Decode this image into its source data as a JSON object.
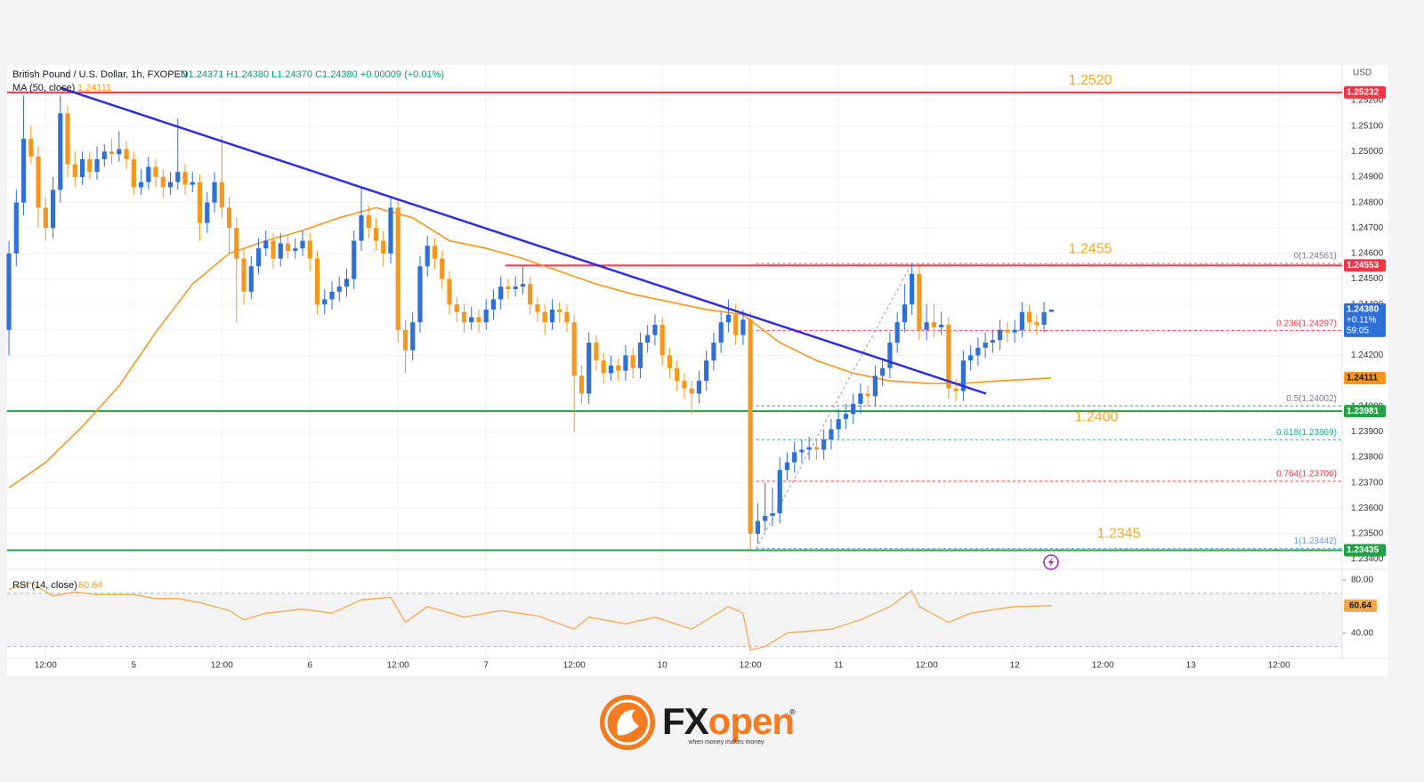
{
  "chart_data": {
    "type": "candlestick",
    "title": "British Pound / U.S. Dollar, 1h, FXOPEN",
    "quote": "O1.24371 H1.24380 L1.24370 C1.24380 +0.00009 (+0.01%)",
    "currency": "USD",
    "up_color": "#2e6fd8",
    "down_color": "#f5961d",
    "grid": true,
    "xlim": [
      -0.25,
      181.6
    ],
    "xticks": [
      {
        "value": 5,
        "label": "12:00"
      },
      {
        "value": 17,
        "label": "5"
      },
      {
        "value": 29,
        "label": "12:00"
      },
      {
        "value": 41,
        "label": "6"
      },
      {
        "value": 53,
        "label": "12:00"
      },
      {
        "value": 65,
        "label": "7"
      },
      {
        "value": 77,
        "label": "12:00"
      },
      {
        "value": 89,
        "label": "10"
      },
      {
        "value": 101,
        "label": "12:00"
      },
      {
        "value": 113,
        "label": "11"
      },
      {
        "value": 125,
        "label": "12:00"
      },
      {
        "value": 137,
        "label": "12"
      },
      {
        "value": 149,
        "label": "12:00"
      },
      {
        "value": 161,
        "label": "13"
      },
      {
        "value": 173,
        "label": "12:00"
      }
    ],
    "ylim": [
      1.2336,
      1.2534
    ],
    "yticks": [
      {
        "value": 1.252,
        "label": "1.25200"
      },
      {
        "value": 1.251,
        "label": "1.25100"
      },
      {
        "value": 1.25,
        "label": "1.25000"
      },
      {
        "value": 1.249,
        "label": "1.24900"
      },
      {
        "value": 1.248,
        "label": "1.24800"
      },
      {
        "value": 1.247,
        "label": "1.24700"
      },
      {
        "value": 1.246,
        "label": "1.24600"
      },
      {
        "value": 1.245,
        "label": "1.24500"
      },
      {
        "value": 1.244,
        "label": "1.24400"
      },
      {
        "value": 1.243,
        "label": "1.24300"
      },
      {
        "value": 1.242,
        "label": "1.24200"
      },
      {
        "value": 1.241,
        "label": "1.24100"
      },
      {
        "value": 1.24,
        "label": "1.24000"
      },
      {
        "value": 1.239,
        "label": "1.23900"
      },
      {
        "value": 1.238,
        "label": "1.23800"
      },
      {
        "value": 1.237,
        "label": "1.23700"
      },
      {
        "value": 1.236,
        "label": "1.23600"
      },
      {
        "value": 1.235,
        "label": "1.23500"
      },
      {
        "value": 1.234,
        "label": "1.23400"
      }
    ],
    "ohlc": [
      [
        1.243,
        1.2465,
        1.242,
        1.246
      ],
      [
        1.246,
        1.2485,
        1.2455,
        1.248
      ],
      [
        1.248,
        1.2522,
        1.2475,
        1.2505
      ],
      [
        1.2505,
        1.251,
        1.2495,
        1.2498
      ],
      [
        1.2498,
        1.2502,
        1.247,
        1.2478
      ],
      [
        1.2478,
        1.2482,
        1.2465,
        1.247
      ],
      [
        1.247,
        1.249,
        1.2466,
        1.2485
      ],
      [
        1.2485,
        1.2522,
        1.248,
        1.2515
      ],
      [
        1.2515,
        1.2518,
        1.249,
        1.2495
      ],
      [
        1.2495,
        1.25,
        1.2486,
        1.249
      ],
      [
        1.249,
        1.25,
        1.2487,
        1.2497
      ],
      [
        1.2497,
        1.25,
        1.2489,
        1.2492
      ],
      [
        1.2492,
        1.2502,
        1.2489,
        1.2497
      ],
      [
        1.2497,
        1.2503,
        1.2494,
        1.25
      ],
      [
        1.25,
        1.2505,
        1.2495,
        1.2499
      ],
      [
        1.2499,
        1.2508,
        1.2496,
        1.2501
      ],
      [
        1.2501,
        1.2504,
        1.2493,
        1.2497
      ],
      [
        1.2497,
        1.25,
        1.2483,
        1.2486
      ],
      [
        1.2486,
        1.2493,
        1.2483,
        1.2488
      ],
      [
        1.2488,
        1.2498,
        1.2485,
        1.2494
      ],
      [
        1.2494,
        1.2497,
        1.2486,
        1.249
      ],
      [
        1.249,
        1.2493,
        1.2482,
        1.2486
      ],
      [
        1.2486,
        1.2492,
        1.2483,
        1.2488
      ],
      [
        1.2488,
        1.2513,
        1.2485,
        1.2492
      ],
      [
        1.2492,
        1.2495,
        1.2483,
        1.2487
      ],
      [
        1.2487,
        1.2492,
        1.2484,
        1.2488
      ],
      [
        1.2488,
        1.2491,
        1.2465,
        1.2472
      ],
      [
        1.2472,
        1.2484,
        1.2468,
        1.248
      ],
      [
        1.248,
        1.2492,
        1.2476,
        1.2488
      ],
      [
        1.2488,
        1.2506,
        1.2474,
        1.2478
      ],
      [
        1.2478,
        1.2482,
        1.246,
        1.247
      ],
      [
        1.247,
        1.2474,
        1.2433,
        1.2458
      ],
      [
        1.2458,
        1.2462,
        1.244,
        1.2445
      ],
      [
        1.2445,
        1.2459,
        1.2442,
        1.2455
      ],
      [
        1.2455,
        1.2466,
        1.2452,
        1.2462
      ],
      [
        1.2462,
        1.2469,
        1.2459,
        1.2465
      ],
      [
        1.2465,
        1.2468,
        1.2454,
        1.2458
      ],
      [
        1.2458,
        1.2468,
        1.2455,
        1.2464
      ],
      [
        1.2464,
        1.2467,
        1.2458,
        1.2461
      ],
      [
        1.2461,
        1.2466,
        1.2458,
        1.2462
      ],
      [
        1.2462,
        1.2469,
        1.2459,
        1.2465
      ],
      [
        1.2465,
        1.2468,
        1.2453,
        1.2458
      ],
      [
        1.2458,
        1.2461,
        1.2436,
        1.244
      ],
      [
        1.244,
        1.2446,
        1.2436,
        1.2442
      ],
      [
        1.2442,
        1.2449,
        1.2438,
        1.2445
      ],
      [
        1.2445,
        1.2451,
        1.2441,
        1.2447
      ],
      [
        1.2447,
        1.2454,
        1.2443,
        1.245
      ],
      [
        1.245,
        1.2469,
        1.2446,
        1.2465
      ],
      [
        1.2465,
        1.2486,
        1.2461,
        1.2475
      ],
      [
        1.2475,
        1.2479,
        1.2466,
        1.247
      ],
      [
        1.247,
        1.2474,
        1.2461,
        1.2465
      ],
      [
        1.2465,
        1.2469,
        1.2455,
        1.246
      ],
      [
        1.246,
        1.2482,
        1.2456,
        1.2478
      ],
      [
        1.2478,
        1.2481,
        1.2425,
        1.243
      ],
      [
        1.243,
        1.2434,
        1.2413,
        1.2422
      ],
      [
        1.2422,
        1.2437,
        1.2418,
        1.2433
      ],
      [
        1.2433,
        1.2459,
        1.2429,
        1.2455
      ],
      [
        1.2455,
        1.2467,
        1.2451,
        1.2463
      ],
      [
        1.2463,
        1.2466,
        1.2454,
        1.2458
      ],
      [
        1.2458,
        1.2461,
        1.2446,
        1.245
      ],
      [
        1.245,
        1.2453,
        1.2436,
        1.244
      ],
      [
        1.244,
        1.2443,
        1.2433,
        1.2437
      ],
      [
        1.2437,
        1.244,
        1.2429,
        1.2433
      ],
      [
        1.2433,
        1.2439,
        1.243,
        1.2435
      ],
      [
        1.2435,
        1.2438,
        1.2429,
        1.2433
      ],
      [
        1.2433,
        1.2442,
        1.243,
        1.2438
      ],
      [
        1.2438,
        1.2446,
        1.2434,
        1.2442
      ],
      [
        1.2442,
        1.2451,
        1.2438,
        1.2447
      ],
      [
        1.2447,
        1.245,
        1.2442,
        1.2446
      ],
      [
        1.2446,
        1.2451,
        1.2443,
        1.2447
      ],
      [
        1.2447,
        1.2455,
        1.2444,
        1.2448
      ],
      [
        1.2448,
        1.2451,
        1.2436,
        1.244
      ],
      [
        1.244,
        1.2443,
        1.2433,
        1.2437
      ],
      [
        1.2437,
        1.244,
        1.2428,
        1.2433
      ],
      [
        1.2433,
        1.2442,
        1.243,
        1.2438
      ],
      [
        1.2438,
        1.2441,
        1.2433,
        1.2437
      ],
      [
        1.2437,
        1.244,
        1.2429,
        1.2433
      ],
      [
        1.2433,
        1.2436,
        1.239,
        1.2412
      ],
      [
        1.2412,
        1.2416,
        1.2401,
        1.2405
      ],
      [
        1.2405,
        1.2429,
        1.2401,
        1.2425
      ],
      [
        1.2425,
        1.2428,
        1.2414,
        1.2418
      ],
      [
        1.2418,
        1.2421,
        1.2409,
        1.2413
      ],
      [
        1.2413,
        1.242,
        1.241,
        1.2416
      ],
      [
        1.2416,
        1.2419,
        1.241,
        1.2414
      ],
      [
        1.2414,
        1.2424,
        1.241,
        1.242
      ],
      [
        1.242,
        1.2423,
        1.2411,
        1.2415
      ],
      [
        1.2415,
        1.2429,
        1.2411,
        1.2425
      ],
      [
        1.2425,
        1.2432,
        1.2421,
        1.2428
      ],
      [
        1.2428,
        1.2436,
        1.2424,
        1.2432
      ],
      [
        1.2432,
        1.2435,
        1.2416,
        1.242
      ],
      [
        1.242,
        1.2423,
        1.2411,
        1.2415
      ],
      [
        1.2415,
        1.2418,
        1.2406,
        1.241
      ],
      [
        1.241,
        1.2413,
        1.2403,
        1.2407
      ],
      [
        1.2407,
        1.241,
        1.2397,
        1.2405
      ],
      [
        1.2405,
        1.2414,
        1.2401,
        1.241
      ],
      [
        1.241,
        1.2422,
        1.2406,
        1.2418
      ],
      [
        1.2418,
        1.2429,
        1.2414,
        1.2425
      ],
      [
        1.2425,
        1.2437,
        1.2421,
        1.2433
      ],
      [
        1.2433,
        1.2442,
        1.2429,
        1.2436
      ],
      [
        1.2436,
        1.244,
        1.2424,
        1.2428
      ],
      [
        1.2428,
        1.2438,
        1.2424,
        1.2434
      ],
      [
        1.2434,
        1.2437,
        1.2344,
        1.235
      ],
      [
        1.235,
        1.2362,
        1.2346,
        1.2355
      ],
      [
        1.2355,
        1.237,
        1.2351,
        1.2357
      ],
      [
        1.2357,
        1.2368,
        1.2353,
        1.2358
      ],
      [
        1.2358,
        1.238,
        1.2354,
        1.2375
      ],
      [
        1.2375,
        1.2382,
        1.2371,
        1.2378
      ],
      [
        1.2378,
        1.2386,
        1.2374,
        1.2382
      ],
      [
        1.2382,
        1.2387,
        1.2378,
        1.2383
      ],
      [
        1.2383,
        1.2388,
        1.2379,
        1.2384
      ],
      [
        1.2384,
        1.2387,
        1.2379,
        1.2383
      ],
      [
        1.2383,
        1.2391,
        1.2379,
        1.2387
      ],
      [
        1.2387,
        1.2395,
        1.2383,
        1.2391
      ],
      [
        1.2391,
        1.2399,
        1.2387,
        1.2395
      ],
      [
        1.2395,
        1.2401,
        1.2391,
        1.2397
      ],
      [
        1.2397,
        1.2405,
        1.2393,
        1.2401
      ],
      [
        1.2401,
        1.2409,
        1.2397,
        1.2405
      ],
      [
        1.2405,
        1.2408,
        1.24,
        1.2404
      ],
      [
        1.2404,
        1.2416,
        1.24,
        1.2412
      ],
      [
        1.2412,
        1.2419,
        1.2408,
        1.2415
      ],
      [
        1.2415,
        1.2429,
        1.2411,
        1.2425
      ],
      [
        1.2425,
        1.2437,
        1.2421,
        1.2433
      ],
      [
        1.2433,
        1.2448,
        1.2429,
        1.244
      ],
      [
        1.244,
        1.24561,
        1.2436,
        1.2452
      ],
      [
        1.2452,
        1.2455,
        1.2426,
        1.243
      ],
      [
        1.243,
        1.244,
        1.2426,
        1.2433
      ],
      [
        1.2433,
        1.244,
        1.2427,
        1.2431
      ],
      [
        1.2431,
        1.2437,
        1.2428,
        1.2432
      ],
      [
        1.2432,
        1.2435,
        1.2403,
        1.2407
      ],
      [
        1.2407,
        1.2411,
        1.2402,
        1.2406
      ],
      [
        1.2406,
        1.2422,
        1.2402,
        1.2418
      ],
      [
        1.2418,
        1.2424,
        1.2414,
        1.242
      ],
      [
        1.242,
        1.2427,
        1.2416,
        1.2423
      ],
      [
        1.2423,
        1.2429,
        1.2419,
        1.2425
      ],
      [
        1.2425,
        1.243,
        1.2421,
        1.2426
      ],
      [
        1.2426,
        1.2434,
        1.2422,
        1.243
      ],
      [
        1.243,
        1.2433,
        1.2425,
        1.2429
      ],
      [
        1.2429,
        1.2434,
        1.2425,
        1.243
      ],
      [
        1.243,
        1.2441,
        1.2427,
        1.2437
      ],
      [
        1.2437,
        1.244,
        1.2429,
        1.2433
      ],
      [
        1.2433,
        1.2436,
        1.2428,
        1.2432
      ],
      [
        1.2432,
        1.2441,
        1.2429,
        1.2437
      ],
      [
        1.24371,
        1.2438,
        1.2437,
        1.2438
      ]
    ],
    "ma": {
      "name": "MA (50, close)",
      "value_label": "1.24111",
      "value": 1.24111,
      "color": "#f5961d",
      "x": [
        0,
        5,
        10,
        15,
        20,
        25,
        30,
        35,
        40,
        45,
        50,
        55,
        60,
        65,
        70,
        75,
        80,
        85,
        90,
        95,
        100,
        105,
        110,
        115,
        120,
        125,
        130,
        135,
        142
      ],
      "values": [
        1.2368,
        1.2378,
        1.2392,
        1.2408,
        1.2429,
        1.2448,
        1.246,
        1.2465,
        1.2469,
        1.2474,
        1.2478,
        1.2474,
        1.2465,
        1.2462,
        1.2458,
        1.2453,
        1.2448,
        1.2444,
        1.2441,
        1.2438,
        1.2436,
        1.2425,
        1.2418,
        1.2413,
        1.241,
        1.2409,
        1.2409,
        1.241,
        1.24111
      ]
    },
    "last": {
      "value": 1.2438,
      "label": "1.24380",
      "change": "+0.11%",
      "countdown": "59:05",
      "color": "#2e6fd8"
    },
    "levels": [
      {
        "value": 1.25232,
        "label": "1.25232",
        "note": "1.2520",
        "color": "#f23645"
      },
      {
        "value": 1.24553,
        "label": "1.24553",
        "note": "1.2455",
        "color": "#f23645",
        "x_start": 67.6
      },
      {
        "value": 1.23981,
        "label": "1.23981",
        "note": "1.2400",
        "color": "#22a146"
      },
      {
        "value": 1.23435,
        "label": "1.23435",
        "note": "1.2345",
        "color": "#22a146"
      }
    ],
    "note_color": "#f5a623",
    "trendline": {
      "x": [
        7,
        133.1
      ],
      "values": [
        1.2525,
        1.2405
      ],
      "color": "#2f2fd9"
    },
    "fib": {
      "x_start": 101.8,
      "anchors_x": [
        101.8,
        123
      ],
      "levels": [
        {
          "value": 1.24561,
          "label": "0(1.24561)",
          "color": "#787b86"
        },
        {
          "value": 1.24297,
          "label": "0.236(1.24297)",
          "color": "#f23645"
        },
        {
          "value": 1.24002,
          "label": "0.5(1.24002)",
          "color": "#787b86"
        },
        {
          "value": 1.23869,
          "label": "0.618(1.23869)",
          "color": "#22ab94"
        },
        {
          "value": 1.23706,
          "label": "0.764(1.23706)",
          "color": "#f23645"
        },
        {
          "value": 1.23442,
          "label": "1(1.23442)",
          "color": "#5b9cf6"
        }
      ]
    },
    "rsi": {
      "name": "RSI (14, close)",
      "value_label": "60.64",
      "value": 60.64,
      "color": "#f5a84a",
      "ylim": [
        21,
        88
      ],
      "yticks": [
        {
          "value": 80,
          "label": "80.00"
        },
        {
          "value": 40,
          "label": "40.00"
        }
      ],
      "bands": [
        30,
        70
      ],
      "x": [
        0,
        3,
        6,
        9,
        12,
        17,
        20,
        23,
        26,
        30,
        32,
        35,
        40,
        44,
        48,
        52,
        54,
        57,
        62,
        67,
        72,
        77,
        79,
        84,
        88,
        93,
        98,
        100,
        101,
        103,
        106,
        112,
        116,
        120,
        123,
        124,
        128,
        131,
        137,
        142
      ],
      "values": [
        73,
        78,
        68,
        71,
        69,
        69,
        66,
        66,
        63,
        57,
        50,
        55,
        58,
        55,
        65,
        67,
        48,
        60,
        52,
        57,
        53,
        43,
        52,
        47,
        52,
        43,
        60,
        55,
        27,
        30,
        40,
        43,
        50,
        60,
        72,
        60,
        48,
        55,
        60,
        60.64
      ]
    },
    "brand": {
      "name_a": "FX",
      "name_b": "open",
      "mark": "®",
      "tagline": "when money makes money"
    }
  }
}
